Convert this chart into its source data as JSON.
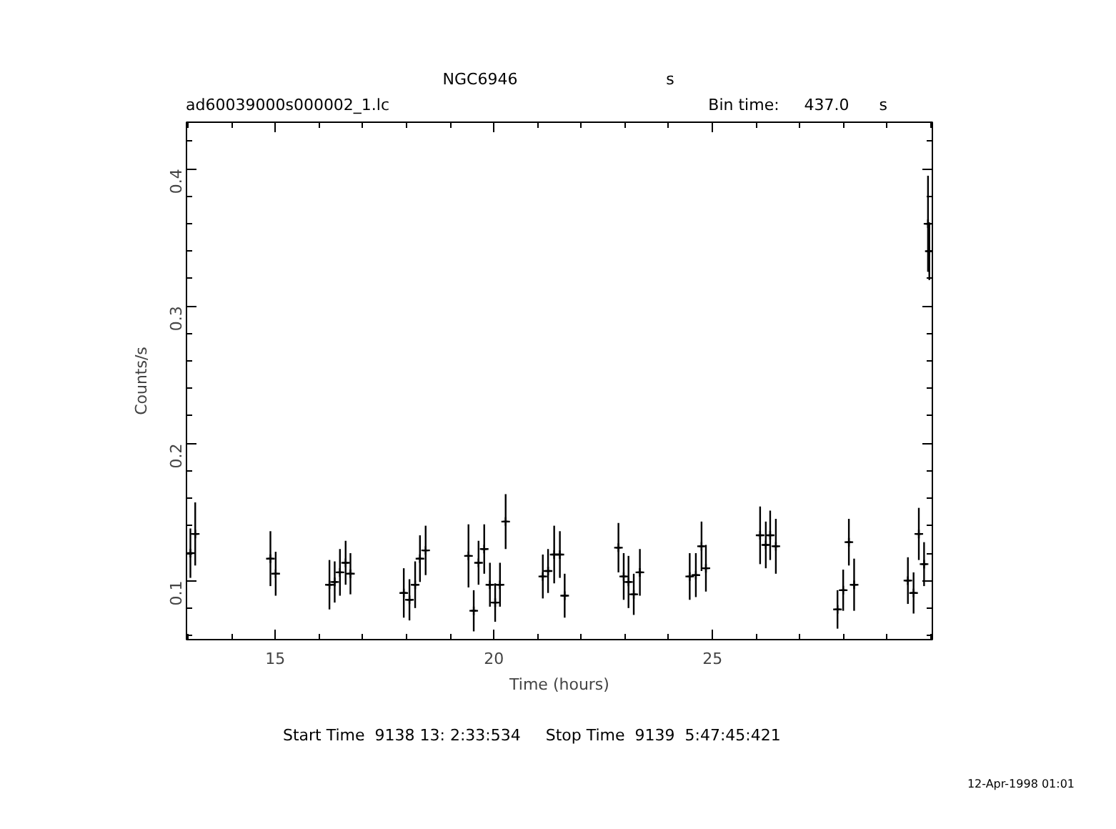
{
  "chart_data": {
    "type": "scatter",
    "title": "NGC6946",
    "xlabel": "Time (hours)",
    "ylabel": "Counts/s",
    "annotations": [
      "s",
      "ad60039000s000002_1.lc",
      "Bin time:     437.0      s",
      "Start Time  9138 13: 2:33:534     Stop Time  9139  5:47:45:421",
      "12-Apr-1998 01:01"
    ],
    "x": [
      13.06,
      13.17,
      14.89,
      15.01,
      16.24,
      16.36,
      16.48,
      16.61,
      16.72,
      17.94,
      18.07,
      18.2,
      18.31,
      18.44,
      19.42,
      19.54,
      19.65,
      19.78,
      19.91,
      20.03,
      20.14,
      20.27,
      21.12,
      21.24,
      21.38,
      21.51,
      21.62,
      22.85,
      22.97,
      23.08,
      23.2,
      23.34,
      24.48,
      24.62,
      24.75,
      24.85,
      26.09,
      26.22,
      26.32,
      26.45,
      27.86,
      27.99,
      28.12,
      28.24,
      29.47,
      29.6,
      29.72,
      29.84,
      29.93,
      29.96
    ],
    "series": [
      {
        "color": "#000000",
        "values": [
          0.12,
          0.134,
          0.116,
          0.105,
          0.097,
          0.099,
          0.106,
          0.113,
          0.105,
          0.091,
          0.086,
          0.097,
          0.116,
          0.122,
          0.118,
          0.078,
          0.113,
          0.123,
          0.097,
          0.084,
          0.097,
          0.143,
          0.103,
          0.107,
          0.119,
          0.119,
          0.089,
          0.124,
          0.103,
          0.099,
          0.09,
          0.106,
          0.103,
          0.104,
          0.125,
          0.109,
          0.133,
          0.126,
          0.133,
          0.125,
          0.079,
          0.093,
          0.128,
          0.097,
          0.1,
          0.091,
          0.134,
          0.112,
          0.36,
          0.34
        ],
        "errors": [
          0.018,
          0.023,
          0.02,
          0.016,
          0.018,
          0.015,
          0.017,
          0.016,
          0.015,
          0.018,
          0.015,
          0.017,
          0.017,
          0.018,
          0.023,
          0.015,
          0.016,
          0.018,
          0.016,
          0.014,
          0.016,
          0.02,
          0.016,
          0.016,
          0.021,
          0.017,
          0.016,
          0.018,
          0.017,
          0.019,
          0.015,
          0.017,
          0.017,
          0.016,
          0.018,
          0.017,
          0.021,
          0.017,
          0.018,
          0.02,
          0.014,
          0.015,
          0.017,
          0.019,
          0.017,
          0.015,
          0.019,
          0.016,
          0.035,
          0.021
        ],
        "xerrors": [
          0.06,
          0.06,
          0.06,
          0.06,
          0.06,
          0.06,
          0.06,
          0.06,
          0.06,
          0.06,
          0.06,
          0.06,
          0.06,
          0.06,
          0.06,
          0.06,
          0.06,
          0.06,
          0.06,
          0.06,
          0.06,
          0.06,
          0.06,
          0.06,
          0.06,
          0.06,
          0.06,
          0.06,
          0.06,
          0.06,
          0.06,
          0.06,
          0.06,
          0.06,
          0.06,
          0.06,
          0.06,
          0.06,
          0.06,
          0.06,
          0.06,
          0.06,
          0.06,
          0.06,
          0.06,
          0.06,
          0.06,
          0.06,
          0.06,
          0.06
        ]
      }
    ],
    "marker": "cross",
    "grid": false,
    "legend": false,
    "xlim": [
      12.97,
      30.03
    ],
    "ylim": [
      0.057,
      0.434
    ],
    "xticks": [
      {
        "value": 13,
        "label": null
      },
      {
        "value": 14,
        "label": null
      },
      15,
      {
        "value": 16,
        "label": null
      },
      {
        "value": 17,
        "label": null
      },
      {
        "value": 18,
        "label": null
      },
      {
        "value": 19,
        "label": null
      },
      20,
      {
        "value": 21,
        "label": null
      },
      {
        "value": 22,
        "label": null
      },
      {
        "value": 23,
        "label": null
      },
      {
        "value": 24,
        "label": null
      },
      25,
      {
        "value": 26,
        "label": null
      },
      {
        "value": 27,
        "label": null
      },
      {
        "value": 28,
        "label": null
      },
      {
        "value": 29,
        "label": null
      },
      {
        "value": 30,
        "label": null
      }
    ],
    "yticks": [
      {
        "value": 0.06,
        "label": null
      },
      {
        "value": 0.08,
        "label": null
      },
      0.1,
      {
        "value": 0.12,
        "label": null
      },
      {
        "value": 0.14,
        "label": null
      },
      {
        "value": 0.16,
        "label": null
      },
      {
        "value": 0.18,
        "label": null
      },
      0.2,
      {
        "value": 0.22,
        "label": null
      },
      {
        "value": 0.24,
        "label": null
      },
      {
        "value": 0.26,
        "label": null
      },
      {
        "value": 0.28,
        "label": null
      },
      0.3,
      {
        "value": 0.32,
        "label": null
      },
      {
        "value": 0.34,
        "label": null
      },
      {
        "value": 0.36,
        "label": null
      },
      {
        "value": 0.38,
        "label": null
      },
      0.4,
      {
        "value": 0.42,
        "label": null
      }
    ]
  }
}
